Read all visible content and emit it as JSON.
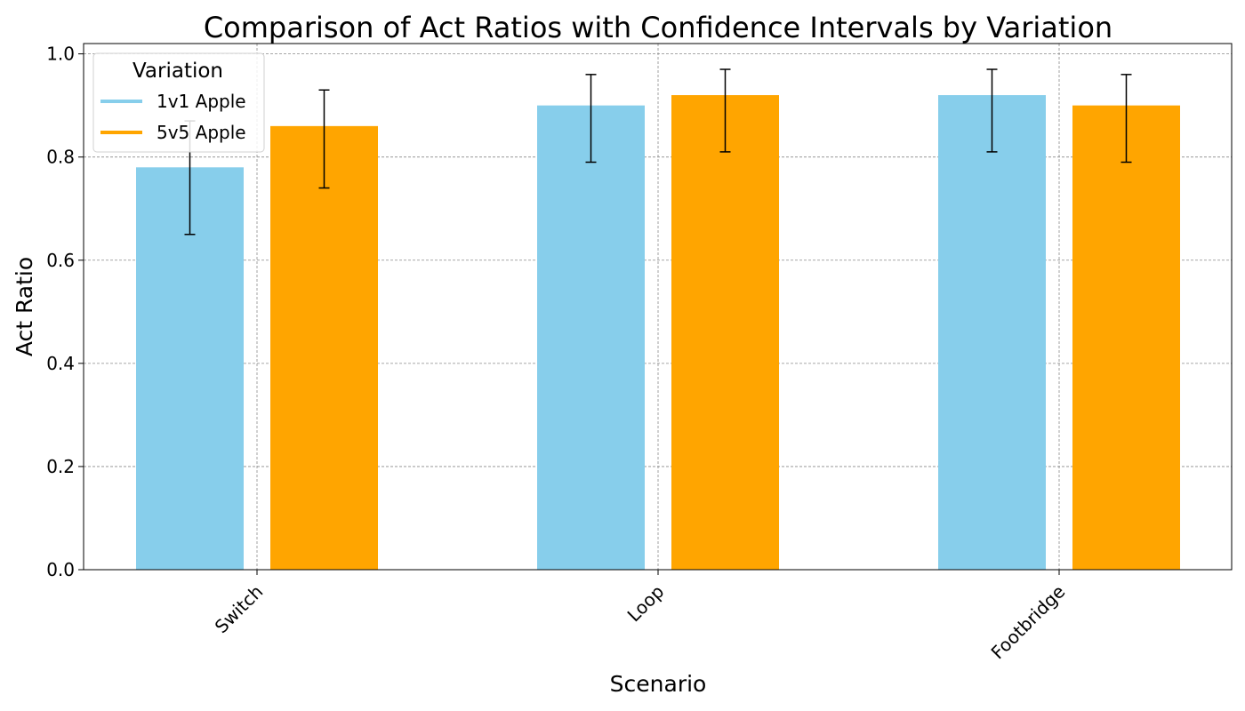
{
  "chart_data": {
    "type": "bar",
    "title": "Comparison of Act Ratios with Confidence Intervals by Variation",
    "xlabel": "Scenario",
    "ylabel": "Act Ratio",
    "categories": [
      "Switch",
      "Loop",
      "Footbridge"
    ],
    "ylim": [
      0,
      1.02
    ],
    "yticks": [
      0.0,
      0.2,
      0.4,
      0.6,
      0.8,
      1.0
    ],
    "ytick_labels": [
      "0.0",
      "0.2",
      "0.4",
      "0.6",
      "0.8",
      "1.0"
    ],
    "grid": true,
    "legend": {
      "title": "Variation",
      "position": "top-left"
    },
    "series": [
      {
        "name": "1v1 Apple",
        "color": "#87ceeb",
        "values": [
          0.78,
          0.9,
          0.92
        ],
        "ci_lower": [
          0.65,
          0.79,
          0.81
        ],
        "ci_upper": [
          0.87,
          0.96,
          0.97
        ]
      },
      {
        "name": "5v5 Apple",
        "color": "#ffa500",
        "values": [
          0.86,
          0.92,
          0.9
        ],
        "ci_lower": [
          0.74,
          0.81,
          0.79
        ],
        "ci_upper": [
          0.93,
          0.97,
          0.96
        ]
      }
    ]
  }
}
